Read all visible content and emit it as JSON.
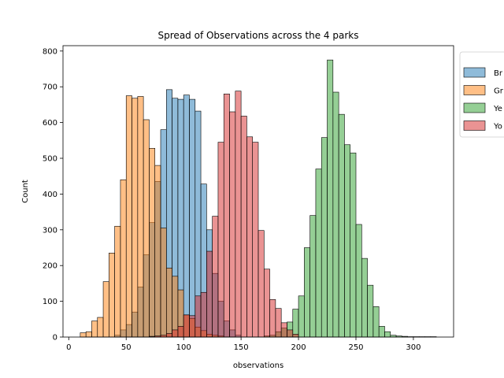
{
  "chart_data": {
    "type": "histogram",
    "title": "Spread of Observations across the 4 parks",
    "xlabel": "observations",
    "ylabel": "Count",
    "xlim": [
      -5,
      335
    ],
    "ylim": [
      0,
      815
    ],
    "xticks": [
      0,
      50,
      100,
      150,
      200,
      250,
      300
    ],
    "yticks": [
      0,
      100,
      200,
      300,
      400,
      500,
      600,
      700,
      800
    ],
    "bin_width": 5,
    "legend_position": "upper-right-outside",
    "series": [
      {
        "name": "Bryce National Park",
        "legend_label": "Br",
        "color": "#1f77b4",
        "x": [
          40,
          45,
          50,
          55,
          60,
          65,
          70,
          75,
          80,
          85,
          90,
          95,
          100,
          105,
          110,
          115,
          120,
          125,
          130,
          135,
          140,
          145
        ],
        "values": [
          5,
          20,
          35,
          70,
          140,
          230,
          320,
          435,
          580,
          692,
          668,
          665,
          677,
          665,
          632,
          428,
          300,
          178,
          100,
          45,
          20,
          5
        ]
      },
      {
        "name": "Great Smoky Mountains National Park",
        "legend_label": "Gr",
        "color": "#ff7f0e",
        "x": [
          10,
          15,
          20,
          25,
          30,
          35,
          40,
          45,
          50,
          55,
          60,
          65,
          70,
          75,
          80,
          85,
          90,
          95,
          100,
          105,
          110,
          115,
          120,
          125,
          130
        ],
        "values": [
          12,
          15,
          45,
          55,
          155,
          235,
          310,
          440,
          675,
          668,
          673,
          608,
          528,
          480,
          305,
          193,
          170,
          132,
          62,
          52,
          28,
          18,
          8,
          5,
          3
        ]
      },
      {
        "name": "Yellowstone National Park",
        "legend_label": "Ye",
        "color": "#2ca02c",
        "x": [
          170,
          175,
          180,
          185,
          190,
          195,
          200,
          205,
          210,
          215,
          220,
          225,
          230,
          235,
          240,
          245,
          250,
          255,
          260,
          265,
          270,
          275,
          280,
          285,
          290,
          295,
          300,
          305,
          310,
          315
        ],
        "values": [
          3,
          5,
          15,
          25,
          42,
          78,
          115,
          250,
          340,
          470,
          558,
          775,
          685,
          623,
          538,
          515,
          315,
          220,
          145,
          85,
          30,
          15,
          5,
          3,
          2,
          1,
          1,
          1,
          1,
          1
        ]
      },
      {
        "name": "Yosemite National Park",
        "legend_label": "Yo",
        "color": "#d62728",
        "x": [
          70,
          75,
          80,
          85,
          90,
          95,
          100,
          105,
          110,
          115,
          120,
          125,
          130,
          135,
          140,
          145,
          150,
          155,
          160,
          165,
          170,
          175,
          180,
          185,
          190,
          195
        ],
        "values": [
          2,
          3,
          5,
          10,
          20,
          30,
          62,
          60,
          115,
          125,
          240,
          338,
          545,
          680,
          630,
          688,
          618,
          560,
          545,
          298,
          190,
          105,
          80,
          40,
          20,
          8
        ]
      }
    ]
  }
}
